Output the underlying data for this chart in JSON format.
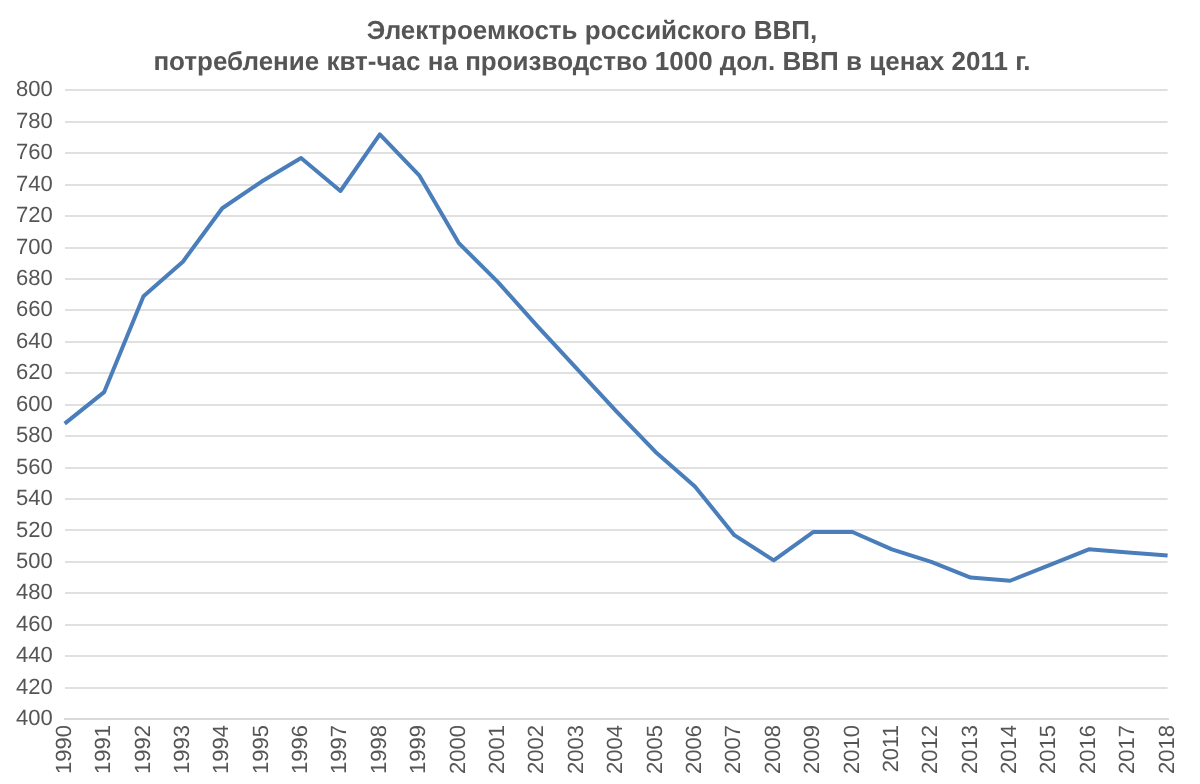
{
  "chart_data": {
    "type": "line",
    "title": [
      "Электроемкость российского ВВП,",
      "потребление квт-час на производство 1000 дол. ВВП в ценах 2011 г."
    ],
    "categories": [
      "1990",
      "1991",
      "1992",
      "1993",
      "1994",
      "1995",
      "1996",
      "1997",
      "1998",
      "1999",
      "2000",
      "2001",
      "2002",
      "2003",
      "2004",
      "2005",
      "2006",
      "2007",
      "2008",
      "2009",
      "2010",
      "2011",
      "2012",
      "2013",
      "2014",
      "2015",
      "2016",
      "2017",
      "2018"
    ],
    "series": [
      {
        "color": "#4a7ebb",
        "values": [
          588,
          608,
          669,
          691,
          725,
          742,
          757,
          736,
          772,
          746,
          703,
          678,
          650,
          623,
          596,
          570,
          548,
          517,
          501,
          519,
          519,
          508,
          500,
          490,
          488,
          498,
          508,
          506,
          504
        ]
      }
    ],
    "ylim": [
      400,
      800
    ],
    "yticks": [
      400,
      420,
      440,
      460,
      480,
      500,
      520,
      540,
      560,
      580,
      600,
      620,
      640,
      660,
      680,
      700,
      720,
      740,
      760,
      780,
      800
    ],
    "grid": "y",
    "legend": false,
    "marker": "none",
    "line_style": "solid"
  }
}
